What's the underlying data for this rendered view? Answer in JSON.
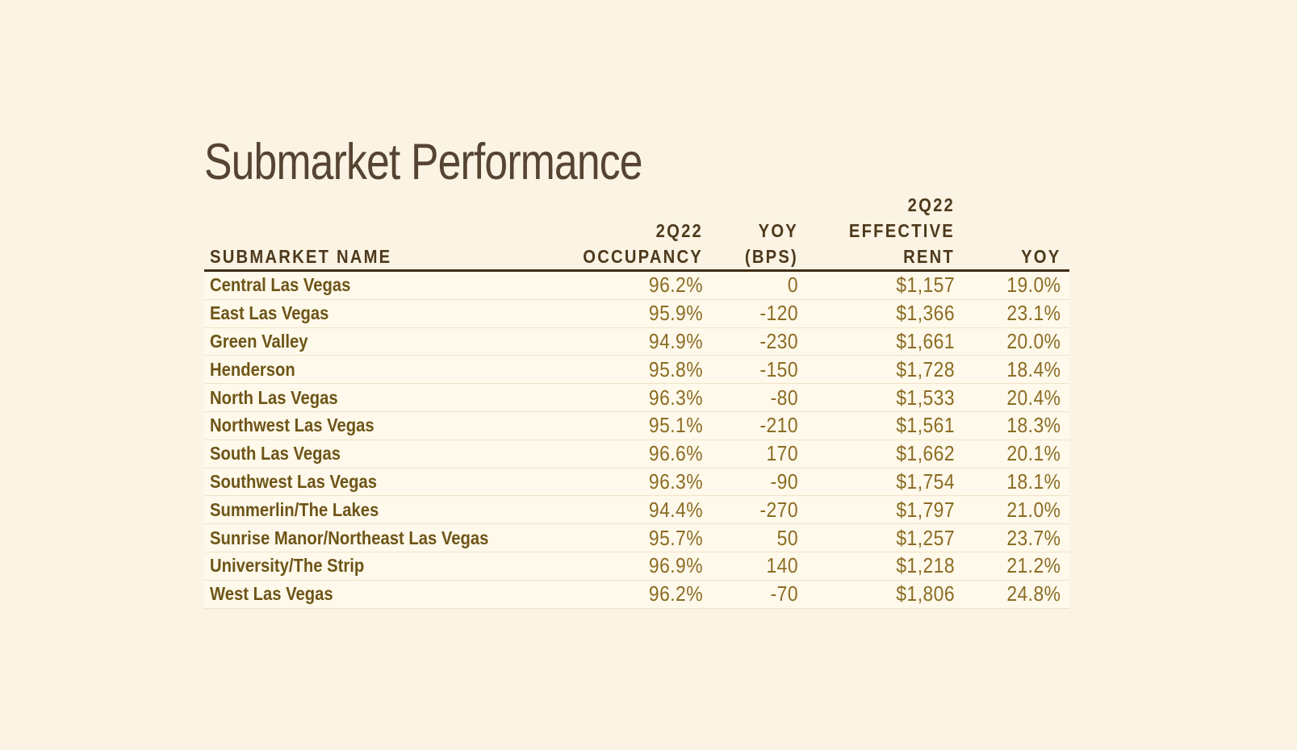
{
  "page": {
    "title": "Submarket Performance",
    "background_color": "#FBF3E3"
  },
  "colors": {
    "page_background": "#FBF3E3",
    "row_background": "#FEF9EB",
    "row_separator": "#F0E4C6",
    "header_rule": "#3E2D15",
    "title_text": "#564433",
    "header_text": "#4D3A1D",
    "row_label_text": "#6E5517",
    "value_text": "#8B6C23"
  },
  "table": {
    "columns": [
      {
        "key": "submarket_name",
        "label": "SUBMARKET NAME",
        "align": "left"
      },
      {
        "key": "occupancy_2q22",
        "label": "2Q22\nOCCUPANCY",
        "align": "right"
      },
      {
        "key": "yoy_bps",
        "label": "YOY\n(BPS)",
        "align": "right"
      },
      {
        "key": "effective_rent_2q22",
        "label": "2Q22\nEFFECTIVE\nRENT",
        "align": "right"
      },
      {
        "key": "yoy",
        "label": "YOY",
        "align": "right"
      }
    ],
    "rows": [
      [
        "Central Las Vegas",
        "96.2%",
        "0",
        "$1,157",
        "19.0%"
      ],
      [
        "East Las Vegas",
        "95.9%",
        "-120",
        "$1,366",
        "23.1%"
      ],
      [
        "Green Valley",
        "94.9%",
        "-230",
        "$1,661",
        "20.0%"
      ],
      [
        "Henderson",
        "95.8%",
        "-150",
        "$1,728",
        "18.4%"
      ],
      [
        "North Las Vegas",
        "96.3%",
        "-80",
        "$1,533",
        "20.4%"
      ],
      [
        "Northwest Las Vegas",
        "95.1%",
        "-210",
        "$1,561",
        "18.3%"
      ],
      [
        "South Las Vegas",
        "96.6%",
        "170",
        "$1,662",
        "20.1%"
      ],
      [
        "Southwest Las Vegas",
        "96.3%",
        "-90",
        "$1,754",
        "18.1%"
      ],
      [
        "Summerlin/The Lakes",
        "94.4%",
        "-270",
        "$1,797",
        "21.0%"
      ],
      [
        "Sunrise Manor/Northeast Las Vegas",
        "95.7%",
        "50",
        "$1,257",
        "23.7%"
      ],
      [
        "University/The Strip",
        "96.9%",
        "140",
        "$1,218",
        "21.2%"
      ],
      [
        "West Las Vegas",
        "96.2%",
        "-70",
        "$1,806",
        "24.8%"
      ]
    ]
  }
}
